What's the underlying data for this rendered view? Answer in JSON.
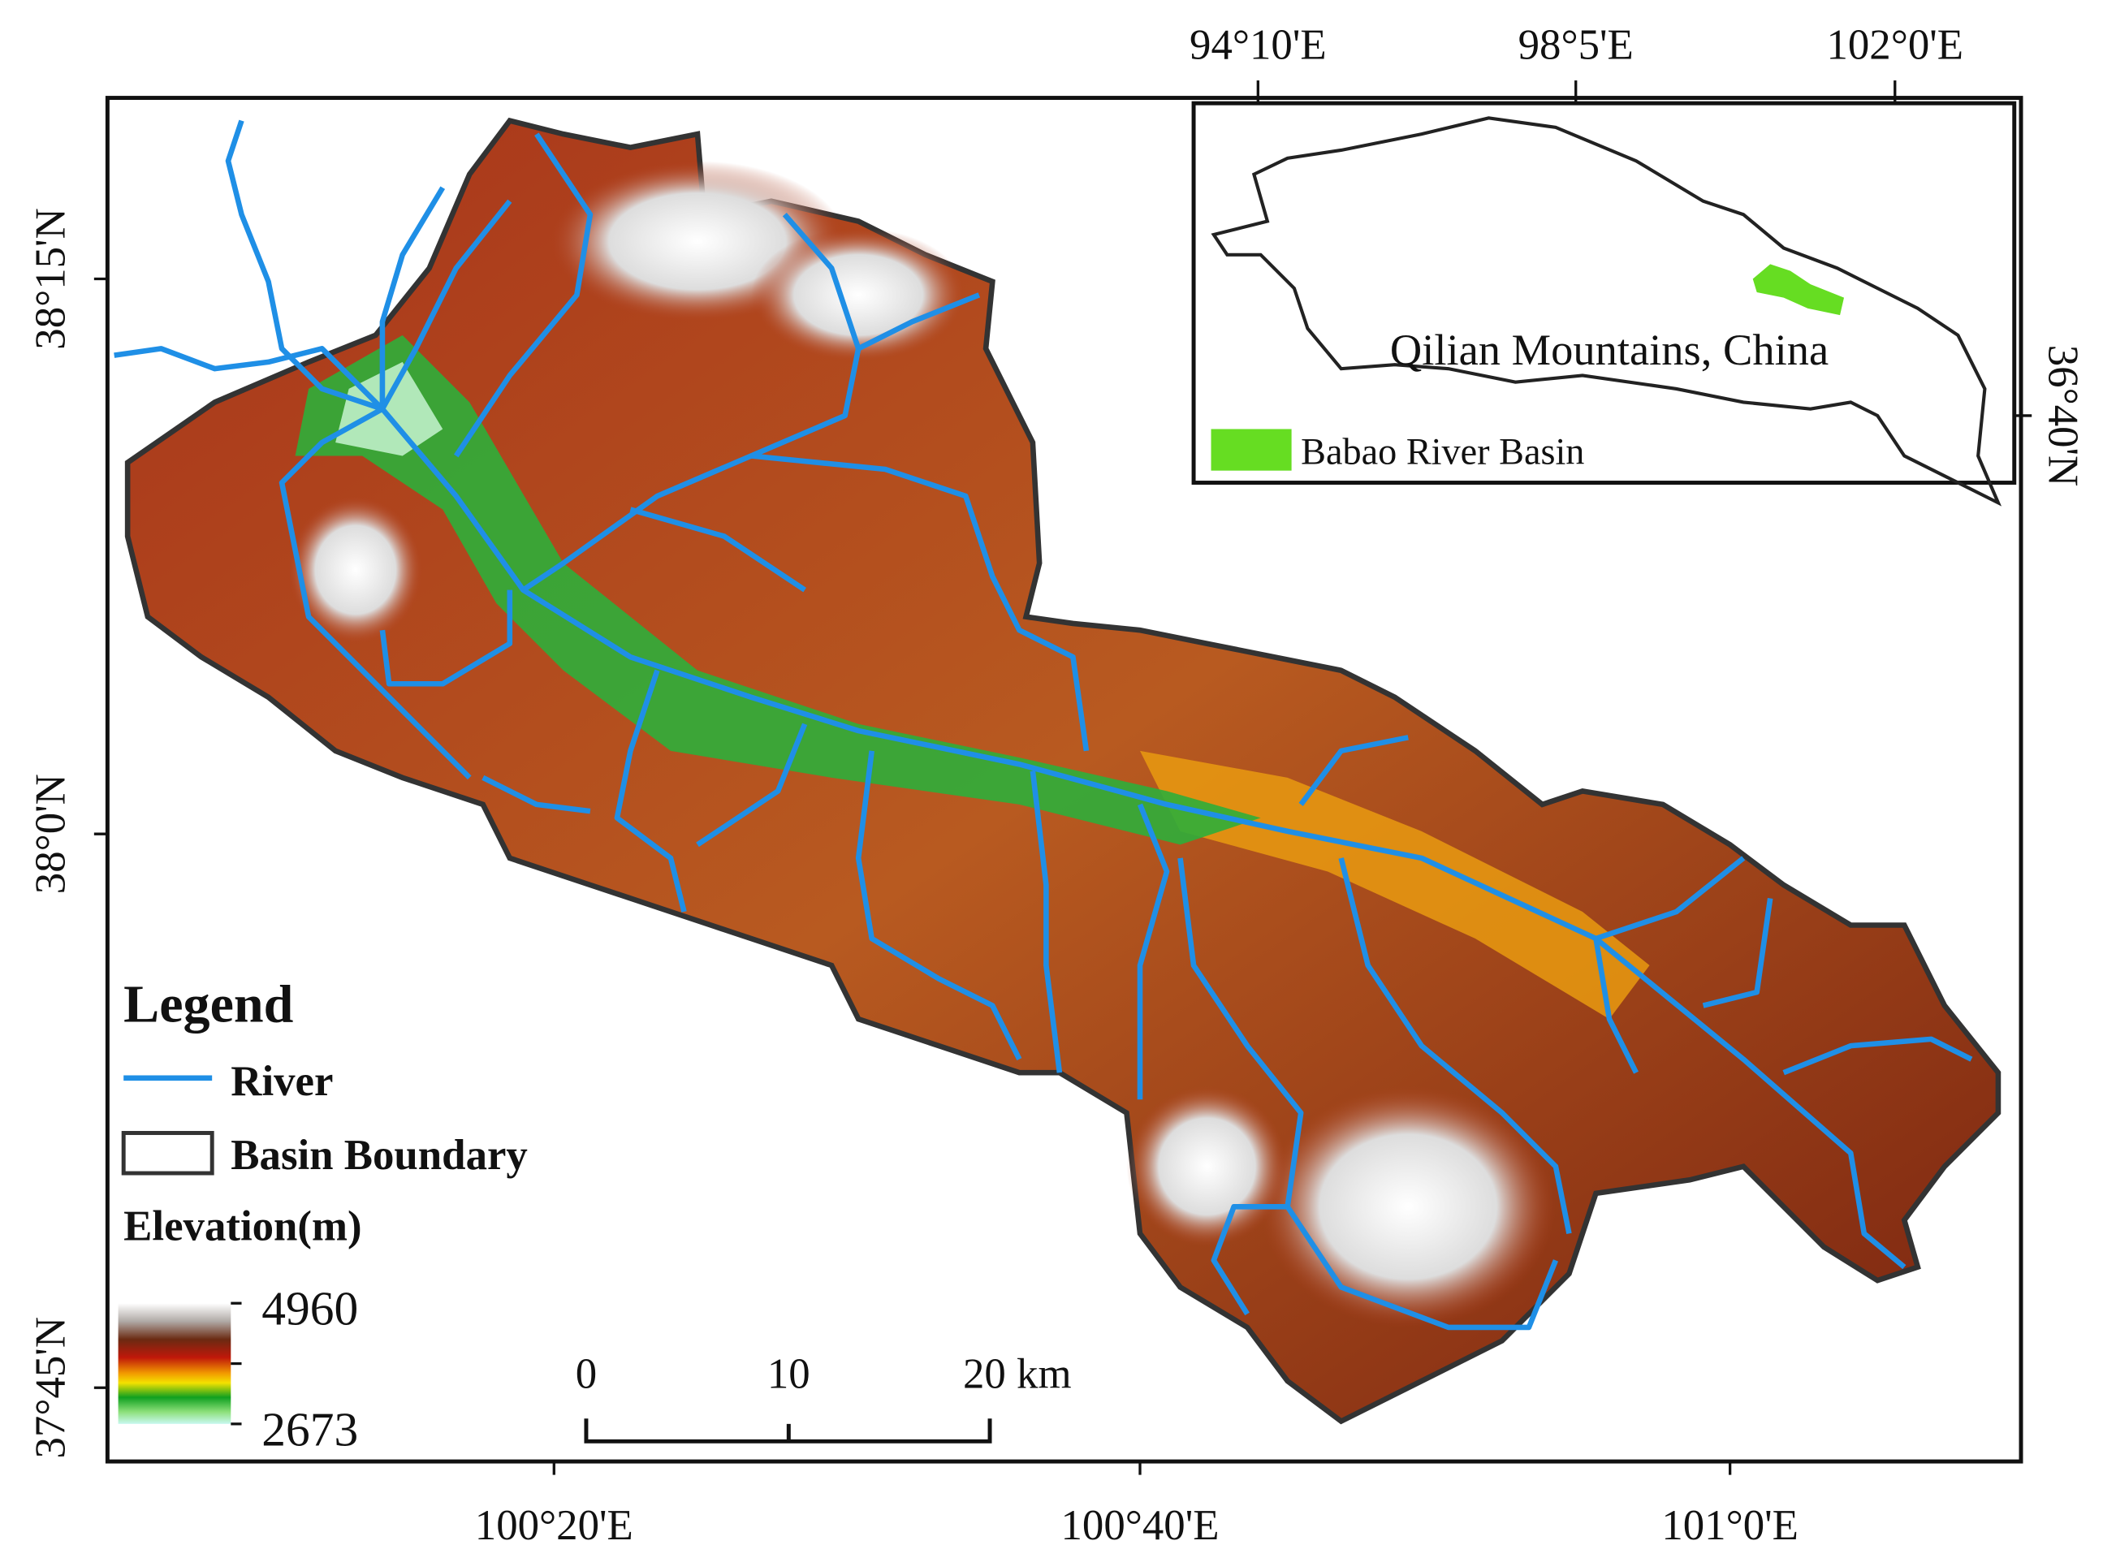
{
  "map": {
    "graticule": {
      "bottom": [
        "100°20'E",
        "100°40'E",
        "101°0'E"
      ],
      "left": [
        "38°15'N",
        "38°0'N",
        "37°45'N"
      ]
    },
    "inset": {
      "top": [
        "94°10'E",
        "98°5'E",
        "102°0'E"
      ],
      "right": [
        "36°40'N"
      ],
      "label": "Qilian Mountains, China",
      "legend": "Babao River Basin"
    },
    "legend": {
      "title": "Legend",
      "items": [
        "River",
        "Basin Boundary"
      ],
      "elevation_title": "Elevation(m)",
      "max": "4960",
      "min": "2673"
    },
    "scale_bar": {
      "labels": [
        "0",
        "10",
        "20 km"
      ]
    }
  }
}
